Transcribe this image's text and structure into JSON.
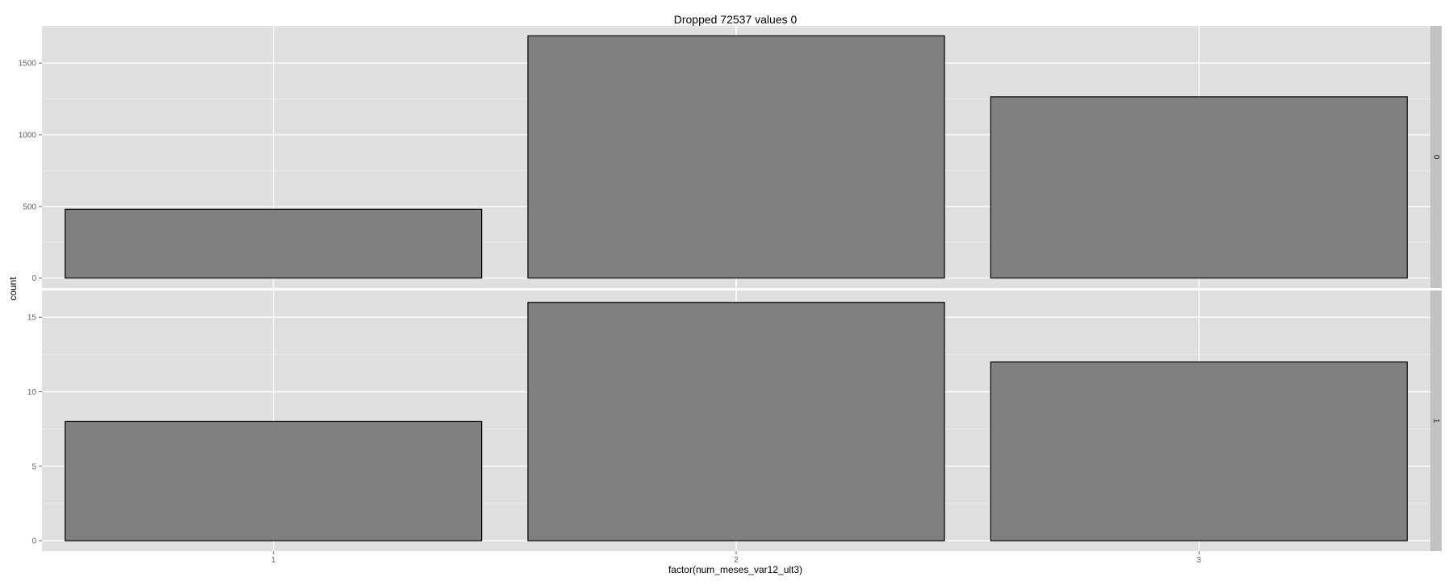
{
  "chart_data": {
    "type": "bar",
    "title": "Dropped 72537 values 0",
    "xlabel": "factor(num_meses_var12_ult3)",
    "ylabel": "count",
    "categories": [
      "1",
      "2",
      "3"
    ],
    "facets": [
      {
        "strip_label": "0",
        "values": [
          480,
          1690,
          1265
        ],
        "ylim": [
          -70,
          1760
        ],
        "yticks": [
          0,
          500,
          1000,
          1500
        ],
        "ytick_labels": [
          "0",
          "500",
          "1000",
          "1500"
        ]
      },
      {
        "strip_label": "1",
        "values": [
          8,
          16,
          12
        ],
        "ylim": [
          -0.7,
          16.8
        ],
        "yticks": [
          0,
          5,
          10,
          15
        ],
        "ytick_labels": [
          "0",
          "5",
          "10",
          "15"
        ]
      }
    ],
    "grid": true,
    "legend": "none",
    "colors": {
      "panel_bg": "#DFDFDF",
      "grid_major": "#FFFFFF",
      "grid_minor": "#EBEBEB",
      "bar_fill": "#808080",
      "bar_stroke": "#000000",
      "strip_bg": "#C2C2C2",
      "tick_text": "#606060",
      "text": "#000000"
    }
  }
}
